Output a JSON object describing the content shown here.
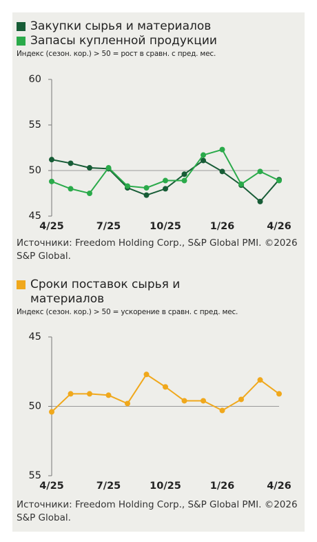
{
  "chart_data": [
    {
      "type": "line",
      "subtitle": "Индекс (сезон. кор.) > 50 = рост в сравн. с пред. мес.",
      "categories": [
        "4/25",
        null,
        null,
        "7/25",
        null,
        null,
        "10/25",
        null,
        null,
        "1/26",
        null,
        null,
        "4/26"
      ],
      "series": [
        {
          "name": "Закупки сырья и материалов",
          "color": "#175c36",
          "values": [
            51.2,
            50.8,
            50.3,
            50.2,
            48.1,
            47.3,
            48.0,
            49.6,
            51.1,
            49.9,
            48.4,
            46.6,
            49.0
          ]
        },
        {
          "name": "Запасы купленной продукции",
          "color": "#2aaa4a",
          "values": [
            48.8,
            48.0,
            47.5,
            50.3,
            48.3,
            48.1,
            48.9,
            48.9,
            51.7,
            52.3,
            48.5,
            49.9,
            48.9
          ]
        }
      ],
      "ylim": [
        45,
        60
      ],
      "yticks": [
        60,
        55,
        50,
        45
      ],
      "reference_line": 50,
      "note": "Источники: Freedom Holding Corp., S&P Global PMI. ©2026 S&P Global."
    },
    {
      "type": "line",
      "subtitle": "Индекс (сезон. кор.) > 50 = ускорение в сравн. с пред. мес.",
      "categories": [
        "4/25",
        null,
        null,
        "7/25",
        null,
        null,
        "10/25",
        null,
        null,
        "1/26",
        null,
        null,
        "4/26"
      ],
      "series": [
        {
          "name": "Сроки поставок сырья и материалов",
          "color": "#f0a81c",
          "values": [
            50.4,
            49.1,
            49.1,
            49.2,
            49.8,
            47.7,
            48.6,
            49.6,
            49.6,
            50.3,
            49.5,
            48.1,
            49.1
          ]
        }
      ],
      "ylim": [
        45,
        55
      ],
      "y_inverted": true,
      "yticks": [
        45,
        50,
        55
      ],
      "reference_line": 50,
      "note": "Источники: Freedom Holding Corp., S&P Global PMI. ©2026 S&P Global."
    }
  ]
}
